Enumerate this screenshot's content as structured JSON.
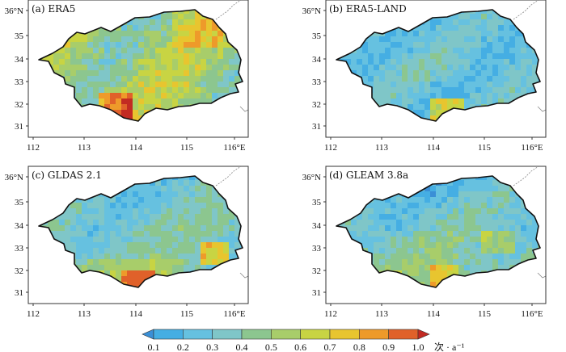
{
  "panels": [
    {
      "label": "(a) ERA5",
      "dataset": "ERA5"
    },
    {
      "label": "(b) ERA5-LAND",
      "dataset": "ERA5-LAND"
    },
    {
      "label": "(c) GLDAS 2.1",
      "dataset": "GLDAS 2.1"
    },
    {
      "label": "(d) GLEAM 3.8a",
      "dataset": "GLEAM 3.8a"
    }
  ],
  "axes": {
    "lon_ticks": [
      "112",
      "113",
      "114",
      "115",
      "116°E"
    ],
    "lat_ticks": [
      "36°N",
      "35",
      "34",
      "33",
      "32",
      "31"
    ],
    "lon_range": [
      111.7,
      117.0
    ],
    "lat_range": [
      30.7,
      36.2
    ]
  },
  "colorbar": {
    "ticks": [
      "0.1",
      "0.2",
      "0.3",
      "0.4",
      "0.5",
      "0.6",
      "0.7",
      "0.8",
      "0.9",
      "1.0"
    ],
    "unit": "次 · a⁻¹",
    "colors": [
      "#3a8fd6",
      "#45aee3",
      "#66c1e0",
      "#7fc6c8",
      "#8cc68f",
      "#a8cd6a",
      "#c8d443",
      "#e8c52f",
      "#ee9a2a",
      "#e0612a",
      "#c22a22"
    ]
  },
  "colors": {
    "frame": "#333333",
    "outline": "#111111",
    "province_border": "#888888"
  }
}
